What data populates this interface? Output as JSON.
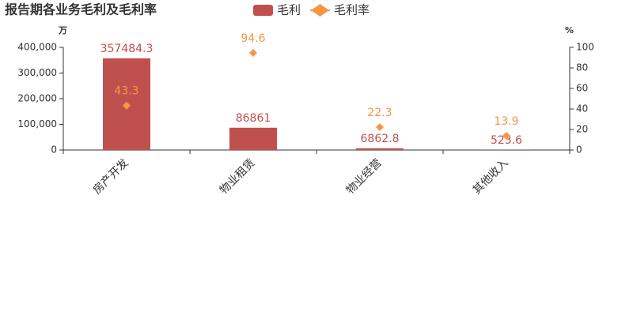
{
  "chart_data": {
    "type": "bar",
    "title": "报告期各业务毛利及毛利率",
    "y_label": "万",
    "y2_label": "%",
    "categories": [
      "房产开发",
      "物业租赁",
      "物业经营",
      "其他收入"
    ],
    "series": [
      {
        "name": "毛利",
        "type": "bar",
        "color": "#c0504d",
        "values": [
          357484.3,
          86861,
          6862.8,
          523.6
        ]
      },
      {
        "name": "毛利率",
        "type": "scatter",
        "marker": "diamond",
        "axis": "y2",
        "color": "#f79646",
        "values": [
          43.3,
          94.6,
          22.3,
          13.9
        ]
      }
    ],
    "ylim": [
      0,
      400000
    ],
    "yticks": [
      0,
      {
        "value": 100000,
        "label": "100,000"
      },
      {
        "value": 200000,
        "label": "200,000"
      },
      {
        "value": 300000,
        "label": "300,000"
      },
      {
        "value": 400000,
        "label": "400,000"
      }
    ],
    "y2lim": [
      0,
      100
    ],
    "y2ticks": [
      0,
      20,
      40,
      60,
      80,
      100
    ],
    "legend": "top"
  }
}
